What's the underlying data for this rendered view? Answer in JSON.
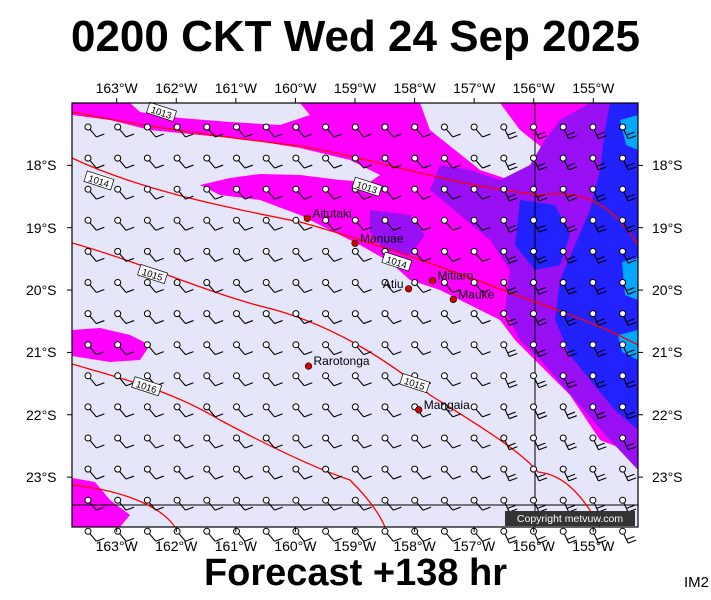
{
  "title": "0200 CKT Wed 24 Sep 2025",
  "subtitle": "Forecast +138 hr",
  "code": "IM2",
  "copyright": "Copyright metvuw.com",
  "x_ticks": [
    "163°W",
    "162°W",
    "161°W",
    "160°W",
    "159°W",
    "158°W",
    "157°W",
    "156°W",
    "155°W"
  ],
  "y_ticks": [
    "18°S",
    "19°S",
    "20°S",
    "21°S",
    "22°S",
    "23°S"
  ],
  "places": [
    {
      "name": "Aitutaki",
      "lon": -159.8,
      "lat": -18.85
    },
    {
      "name": "Manuae",
      "lon": -159.0,
      "lat": -19.25
    },
    {
      "name": "Mitiaro",
      "lon": -157.7,
      "lat": -19.85
    },
    {
      "name": "Atiu",
      "lon": -158.1,
      "lat": -19.98
    },
    {
      "name": "Mauke",
      "lon": -157.35,
      "lat": -20.15
    },
    {
      "name": "Rarotonga",
      "lon": -159.78,
      "lat": -21.22
    },
    {
      "name": "Mangaia",
      "lon": -157.93,
      "lat": -21.92
    }
  ],
  "isobars": [
    {
      "label": "1013",
      "lon": -162.25,
      "lat": -17.15
    },
    {
      "label": "1013",
      "lon": -158.8,
      "lat": -18.35
    },
    {
      "label": "1014",
      "lon": -163.3,
      "lat": -18.25
    },
    {
      "label": "1014",
      "lon": -158.3,
      "lat": -19.55
    },
    {
      "label": "1015",
      "lon": -162.4,
      "lat": -19.75
    },
    {
      "label": "1015",
      "lon": -158.0,
      "lat": -21.5
    },
    {
      "label": "1016",
      "lon": -162.5,
      "lat": -21.55
    }
  ],
  "colors": {
    "background": "#e6e6fa",
    "magenta": "#ff00ff",
    "violet": "#9a10f5",
    "blue": "#2222ff",
    "cyan": "#00a8ff",
    "isobar": "#ff0000",
    "place": "#d40000"
  },
  "extent": {
    "lon": [
      -163.75,
      -154.25
    ],
    "lat": [
      -17.0,
      -23.8
    ]
  }
}
